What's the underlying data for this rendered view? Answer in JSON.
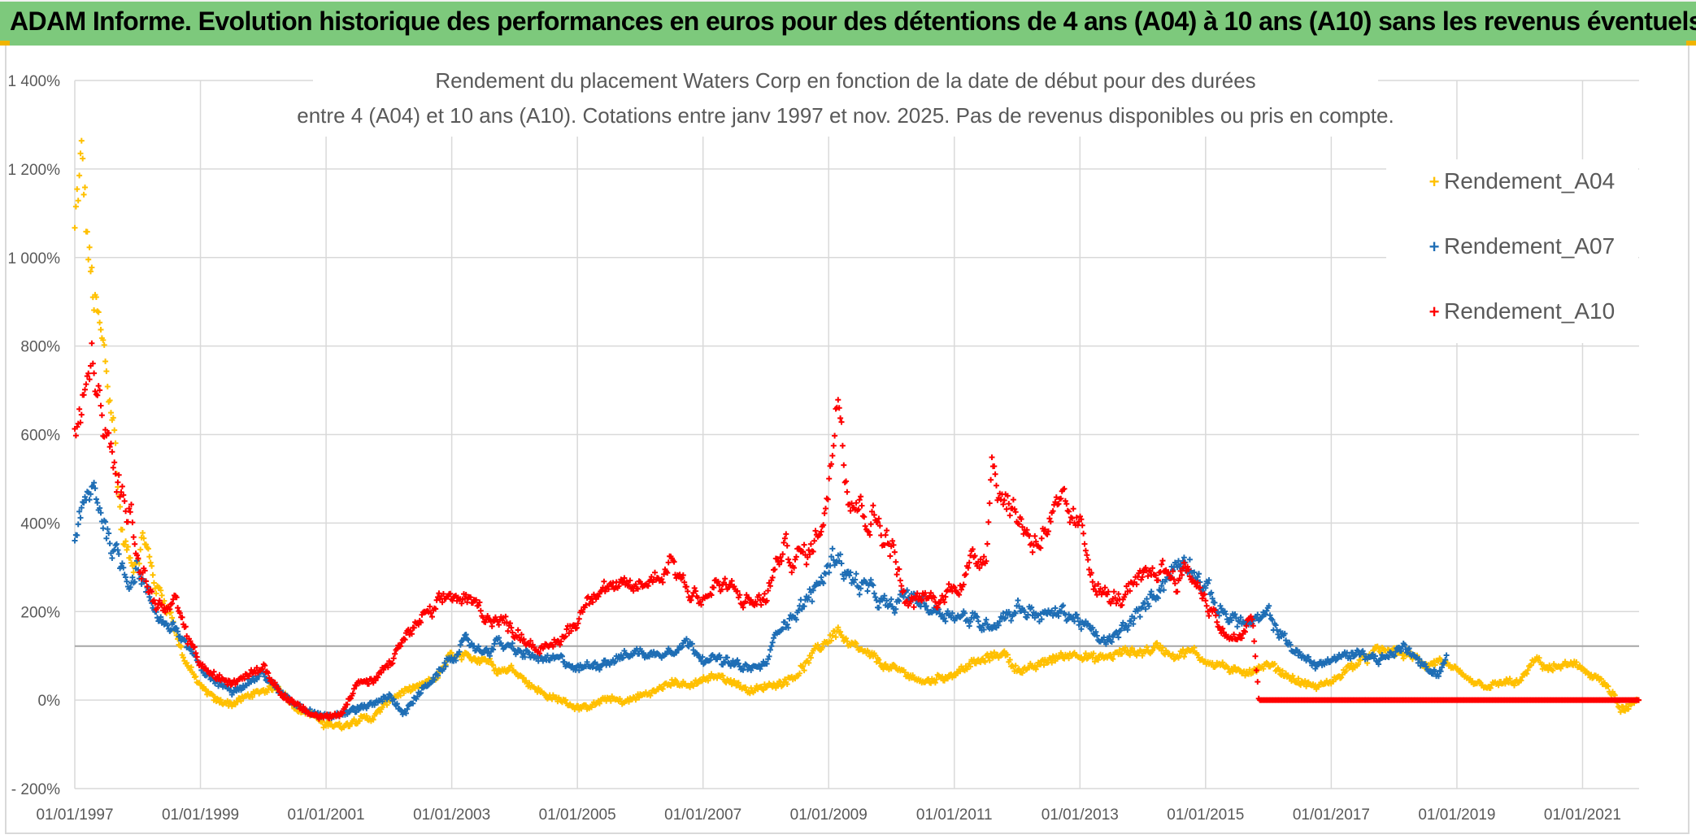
{
  "header": {
    "title": "ADAM Informe. Evolution historique des performances en euros pour des détentions de 4 ans (A04) à 10 ans (A10) sans les revenus éventuels"
  },
  "colors": {
    "banner": "#7dc97c",
    "a04": "#ffc000",
    "a07": "#1f6eb5",
    "a10": "#ff0000",
    "grid": "#d9d9d9",
    "refline": "#a6a6a6"
  },
  "chart_data": {
    "type": "scatter",
    "title_lines": [
      "Rendement du placement Waters Corp en fonction de la date de début pour des durées",
      "entre 4 (A04) et 10 ans (A10). Cotations entre janv 1997 et nov. 2025. Pas de revenus disponibles ou pris en compte."
    ],
    "x_tick_labels": [
      "01/01/1997",
      "01/01/1999",
      "01/01/2001",
      "01/01/2003",
      "01/01/2005",
      "01/01/2007",
      "01/01/2009",
      "01/01/2011",
      "01/01/2013",
      "01/01/2015",
      "01/01/2017",
      "01/01/2019",
      "01/01/2021"
    ],
    "x_range": [
      1997.0,
      2021.9
    ],
    "y_tick_labels": [
      "1 400%",
      "1 200%",
      "1 000%",
      "800%",
      "600%",
      "400%",
      "200%",
      "0%",
      "- 200%"
    ],
    "y_ticks": [
      1400,
      1200,
      1000,
      800,
      600,
      400,
      200,
      0,
      -200
    ],
    "ylim": [
      -200,
      1400
    ],
    "reference_line_y": 122,
    "legend_position": "top-right",
    "marker": "+",
    "series": [
      {
        "name": "Rendement_A04",
        "x_range": [
          1997.0,
          2021.9
        ],
        "keypoints": [
          [
            1997.0,
            1050
          ],
          [
            1997.1,
            1200
          ],
          [
            1997.25,
            950
          ],
          [
            1997.4,
            800
          ],
          [
            1997.6,
            650
          ],
          [
            1997.75,
            380
          ],
          [
            1997.9,
            300
          ],
          [
            1998.1,
            380
          ],
          [
            1998.25,
            270
          ],
          [
            1998.5,
            210
          ],
          [
            1998.75,
            90
          ],
          [
            1999.0,
            30
          ],
          [
            1999.25,
            0
          ],
          [
            1999.5,
            -10
          ],
          [
            1999.75,
            10
          ],
          [
            2000.0,
            20
          ],
          [
            2000.25,
            30
          ],
          [
            2000.5,
            -20
          ],
          [
            2000.75,
            -30
          ],
          [
            2001.0,
            -55
          ],
          [
            2001.25,
            -55
          ],
          [
            2001.5,
            -45
          ],
          [
            2001.75,
            -40
          ],
          [
            2002.0,
            0
          ],
          [
            2002.25,
            20
          ],
          [
            2002.5,
            30
          ],
          [
            2002.75,
            50
          ],
          [
            2003.0,
            100
          ],
          [
            2003.25,
            90
          ],
          [
            2003.5,
            100
          ],
          [
            2003.75,
            70
          ],
          [
            2004.0,
            70
          ],
          [
            2004.25,
            35
          ],
          [
            2004.5,
            10
          ],
          [
            2004.75,
            0
          ],
          [
            2005.0,
            -20
          ],
          [
            2005.25,
            -10
          ],
          [
            2005.5,
            5
          ],
          [
            2005.75,
            -5
          ],
          [
            2006.0,
            10
          ],
          [
            2006.25,
            20
          ],
          [
            2006.5,
            45
          ],
          [
            2006.75,
            30
          ],
          [
            2007.0,
            45
          ],
          [
            2007.25,
            55
          ],
          [
            2007.5,
            40
          ],
          [
            2007.75,
            20
          ],
          [
            2008.0,
            30
          ],
          [
            2008.25,
            40
          ],
          [
            2008.5,
            60
          ],
          [
            2008.75,
            100
          ],
          [
            2009.0,
            140
          ],
          [
            2009.15,
            160
          ],
          [
            2009.3,
            120
          ],
          [
            2009.5,
            110
          ],
          [
            2009.75,
            90
          ],
          [
            2010.0,
            70
          ],
          [
            2010.25,
            60
          ],
          [
            2010.5,
            40
          ],
          [
            2010.75,
            50
          ],
          [
            2011.0,
            60
          ],
          [
            2011.25,
            80
          ],
          [
            2011.5,
            90
          ],
          [
            2011.75,
            110
          ],
          [
            2012.0,
            70
          ],
          [
            2012.25,
            70
          ],
          [
            2012.5,
            90
          ],
          [
            2012.75,
            100
          ],
          [
            2013.0,
            110
          ],
          [
            2013.25,
            90
          ],
          [
            2013.5,
            100
          ],
          [
            2013.75,
            110
          ],
          [
            2014.0,
            110
          ],
          [
            2014.25,
            120
          ],
          [
            2014.5,
            105
          ],
          [
            2014.75,
            110
          ],
          [
            2015.0,
            90
          ],
          [
            2015.25,
            80
          ],
          [
            2015.5,
            60
          ],
          [
            2015.75,
            70
          ],
          [
            2016.0,
            80
          ],
          [
            2016.25,
            60
          ],
          [
            2016.5,
            40
          ],
          [
            2016.75,
            30
          ],
          [
            2017.0,
            40
          ],
          [
            2017.25,
            70
          ],
          [
            2017.5,
            90
          ],
          [
            2017.75,
            110
          ],
          [
            2018.0,
            110
          ],
          [
            2018.25,
            100
          ],
          [
            2018.5,
            80
          ],
          [
            2018.75,
            90
          ],
          [
            2019.0,
            60
          ],
          [
            2019.25,
            40
          ],
          [
            2019.5,
            30
          ],
          [
            2019.75,
            40
          ],
          [
            2020.0,
            40
          ],
          [
            2020.25,
            90
          ],
          [
            2020.5,
            70
          ],
          [
            2020.75,
            80
          ],
          [
            2021.0,
            70
          ],
          [
            2021.25,
            50
          ],
          [
            2021.5,
            10
          ],
          [
            2021.6,
            -20
          ],
          [
            2021.75,
            -15
          ],
          [
            2021.9,
            0
          ]
        ]
      },
      {
        "name": "Rendement_A07",
        "x_range": [
          1997.0,
          2018.85
        ],
        "keypoints": [
          [
            1997.0,
            380
          ],
          [
            1997.15,
            420
          ],
          [
            1997.3,
            470
          ],
          [
            1997.45,
            420
          ],
          [
            1997.6,
            350
          ],
          [
            1997.75,
            300
          ],
          [
            1997.9,
            280
          ],
          [
            1998.0,
            310
          ],
          [
            1998.2,
            220
          ],
          [
            1998.4,
            180
          ],
          [
            1998.6,
            160
          ],
          [
            1998.8,
            120
          ],
          [
            1999.0,
            70
          ],
          [
            1999.25,
            40
          ],
          [
            1999.5,
            20
          ],
          [
            1999.75,
            40
          ],
          [
            2000.0,
            60
          ],
          [
            2000.25,
            20
          ],
          [
            2000.5,
            -10
          ],
          [
            2000.75,
            -30
          ],
          [
            2001.0,
            -40
          ],
          [
            2001.25,
            -30
          ],
          [
            2001.5,
            -20
          ],
          [
            2001.75,
            -10
          ],
          [
            2002.0,
            10
          ],
          [
            2002.25,
            -30
          ],
          [
            2002.5,
            20
          ],
          [
            2002.75,
            50
          ],
          [
            2003.0,
            100
          ],
          [
            2003.25,
            130
          ],
          [
            2003.5,
            110
          ],
          [
            2003.75,
            130
          ],
          [
            2004.0,
            110
          ],
          [
            2004.25,
            100
          ],
          [
            2004.5,
            90
          ],
          [
            2004.75,
            90
          ],
          [
            2005.0,
            70
          ],
          [
            2005.25,
            80
          ],
          [
            2005.5,
            90
          ],
          [
            2005.75,
            100
          ],
          [
            2006.0,
            110
          ],
          [
            2006.25,
            100
          ],
          [
            2006.5,
            120
          ],
          [
            2006.75,
            130
          ],
          [
            2007.0,
            100
          ],
          [
            2007.25,
            90
          ],
          [
            2007.5,
            80
          ],
          [
            2007.75,
            70
          ],
          [
            2008.0,
            80
          ],
          [
            2008.25,
            180
          ],
          [
            2008.5,
            200
          ],
          [
            2008.75,
            240
          ],
          [
            2009.0,
            300
          ],
          [
            2009.15,
            340
          ],
          [
            2009.3,
            280
          ],
          [
            2009.5,
            260
          ],
          [
            2009.75,
            230
          ],
          [
            2010.0,
            200
          ],
          [
            2010.25,
            240
          ],
          [
            2010.5,
            220
          ],
          [
            2010.75,
            200
          ],
          [
            2011.0,
            200
          ],
          [
            2011.25,
            180
          ],
          [
            2011.5,
            170
          ],
          [
            2011.75,
            190
          ],
          [
            2012.0,
            210
          ],
          [
            2012.25,
            200
          ],
          [
            2012.5,
            190
          ],
          [
            2012.75,
            200
          ],
          [
            2013.0,
            180
          ],
          [
            2013.25,
            140
          ],
          [
            2013.5,
            130
          ],
          [
            2013.75,
            170
          ],
          [
            2014.0,
            200
          ],
          [
            2014.25,
            260
          ],
          [
            2014.5,
            300
          ],
          [
            2014.75,
            330
          ],
          [
            2015.0,
            250
          ],
          [
            2015.25,
            200
          ],
          [
            2015.5,
            180
          ],
          [
            2015.75,
            170
          ],
          [
            2016.0,
            190
          ],
          [
            2016.25,
            140
          ],
          [
            2016.5,
            100
          ],
          [
            2016.75,
            80
          ],
          [
            2017.0,
            90
          ],
          [
            2017.25,
            100
          ],
          [
            2017.5,
            110
          ],
          [
            2017.75,
            90
          ],
          [
            2018.0,
            110
          ],
          [
            2018.25,
            120
          ],
          [
            2018.5,
            70
          ],
          [
            2018.7,
            60
          ],
          [
            2018.85,
            100
          ]
        ]
      },
      {
        "name": "Rendement_A10",
        "x_range": [
          1997.0,
          2021.9
        ],
        "keypoints": [
          [
            1997.0,
            600
          ],
          [
            1997.15,
            660
          ],
          [
            1997.3,
            780
          ],
          [
            1997.45,
            600
          ],
          [
            1997.6,
            520
          ],
          [
            1997.75,
            450
          ],
          [
            1997.9,
            470
          ],
          [
            1998.0,
            320
          ],
          [
            1998.2,
            240
          ],
          [
            1998.4,
            200
          ],
          [
            1998.6,
            210
          ],
          [
            1998.8,
            140
          ],
          [
            1999.0,
            80
          ],
          [
            1999.25,
            50
          ],
          [
            1999.5,
            40
          ],
          [
            1999.75,
            60
          ],
          [
            2000.0,
            80
          ],
          [
            2000.25,
            20
          ],
          [
            2000.5,
            -10
          ],
          [
            2000.75,
            -30
          ],
          [
            2001.0,
            -40
          ],
          [
            2001.25,
            -30
          ],
          [
            2001.5,
            40
          ],
          [
            2001.75,
            40
          ],
          [
            2002.0,
            80
          ],
          [
            2002.25,
            140
          ],
          [
            2002.5,
            180
          ],
          [
            2002.75,
            200
          ],
          [
            2003.0,
            240
          ],
          [
            2003.25,
            220
          ],
          [
            2003.5,
            200
          ],
          [
            2003.75,
            180
          ],
          [
            2004.0,
            160
          ],
          [
            2004.25,
            130
          ],
          [
            2004.5,
            110
          ],
          [
            2004.75,
            140
          ],
          [
            2005.0,
            180
          ],
          [
            2005.25,
            260
          ],
          [
            2005.5,
            260
          ],
          [
            2005.75,
            240
          ],
          [
            2006.0,
            260
          ],
          [
            2006.25,
            280
          ],
          [
            2006.5,
            320
          ],
          [
            2006.75,
            250
          ],
          [
            2007.0,
            230
          ],
          [
            2007.25,
            260
          ],
          [
            2007.5,
            240
          ],
          [
            2007.75,
            220
          ],
          [
            2008.0,
            230
          ],
          [
            2008.25,
            340
          ],
          [
            2008.5,
            320
          ],
          [
            2008.75,
            340
          ],
          [
            2009.0,
            480
          ],
          [
            2009.1,
            640
          ],
          [
            2009.15,
            760
          ],
          [
            2009.3,
            500
          ],
          [
            2009.5,
            440
          ],
          [
            2009.75,
            410
          ],
          [
            2010.0,
            350
          ],
          [
            2010.25,
            210
          ],
          [
            2010.5,
            230
          ],
          [
            2010.75,
            220
          ],
          [
            2011.0,
            260
          ],
          [
            2011.25,
            300
          ],
          [
            2011.5,
            340
          ],
          [
            2011.6,
            560
          ],
          [
            2011.75,
            460
          ],
          [
            2012.0,
            420
          ],
          [
            2012.25,
            360
          ],
          [
            2012.5,
            400
          ],
          [
            2012.75,
            420
          ],
          [
            2013.0,
            380
          ],
          [
            2013.25,
            270
          ],
          [
            2013.5,
            220
          ],
          [
            2013.75,
            240
          ],
          [
            2014.0,
            260
          ],
          [
            2014.25,
            300
          ],
          [
            2014.5,
            280
          ],
          [
            2014.75,
            290
          ],
          [
            2015.0,
            230
          ],
          [
            2015.25,
            160
          ],
          [
            2015.5,
            130
          ],
          [
            2015.75,
            180
          ],
          [
            2015.85,
            0
          ],
          [
            2016.5,
            0
          ],
          [
            2017.5,
            0
          ],
          [
            2018.5,
            0
          ],
          [
            2019.5,
            0
          ],
          [
            2020.5,
            0
          ],
          [
            2021.5,
            0
          ],
          [
            2021.9,
            0
          ]
        ]
      }
    ]
  }
}
